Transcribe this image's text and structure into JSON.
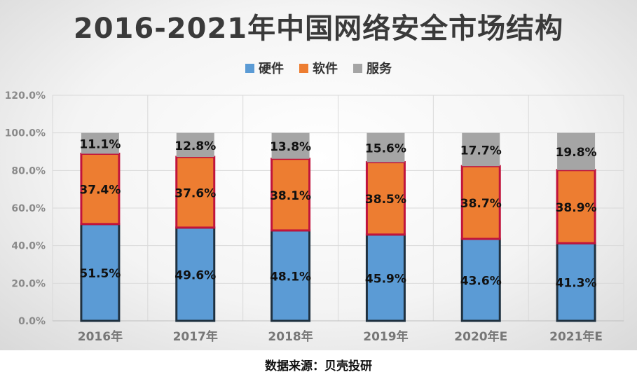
{
  "chart_data": {
    "type": "bar",
    "stacked": true,
    "title": "2016-2021年中国网络安全市场结构",
    "categories": [
      "2016年",
      "2017年",
      "2018年",
      "2019年",
      "2020年E",
      "2021年E"
    ],
    "series": [
      {
        "name": "硬件",
        "values": [
          51.5,
          49.6,
          48.1,
          45.9,
          43.6,
          41.3
        ],
        "labels": [
          "51.5%",
          "49.6%",
          "48.1%",
          "45.9%",
          "43.6%",
          "41.3%"
        ],
        "color": "#5b9bd5",
        "stroke": "#1f3140"
      },
      {
        "name": "软件",
        "values": [
          37.4,
          37.6,
          38.1,
          38.5,
          38.7,
          38.9
        ],
        "labels": [
          "37.4%",
          "37.6%",
          "38.1%",
          "38.5%",
          "38.7%",
          "38.9%"
        ],
        "color": "#ed7d31",
        "stroke": "#c0143c"
      },
      {
        "name": "服务",
        "values": [
          11.1,
          12.8,
          13.8,
          15.6,
          17.7,
          19.8
        ],
        "labels": [
          "11.1%",
          "12.8%",
          "13.8%",
          "15.6%",
          "17.7%",
          "19.8%"
        ],
        "color": "#a5a5a5",
        "stroke": "#a5a5a5"
      }
    ],
    "yticks": [
      "0.0%",
      "20.0%",
      "40.0%",
      "60.0%",
      "80.0%",
      "100.0%",
      "120.0%"
    ],
    "ylim": [
      0,
      120
    ],
    "xlabel": "",
    "ylabel": "",
    "grid": true,
    "legend_position": "top"
  },
  "source_text": "数据来源：贝壳投研"
}
